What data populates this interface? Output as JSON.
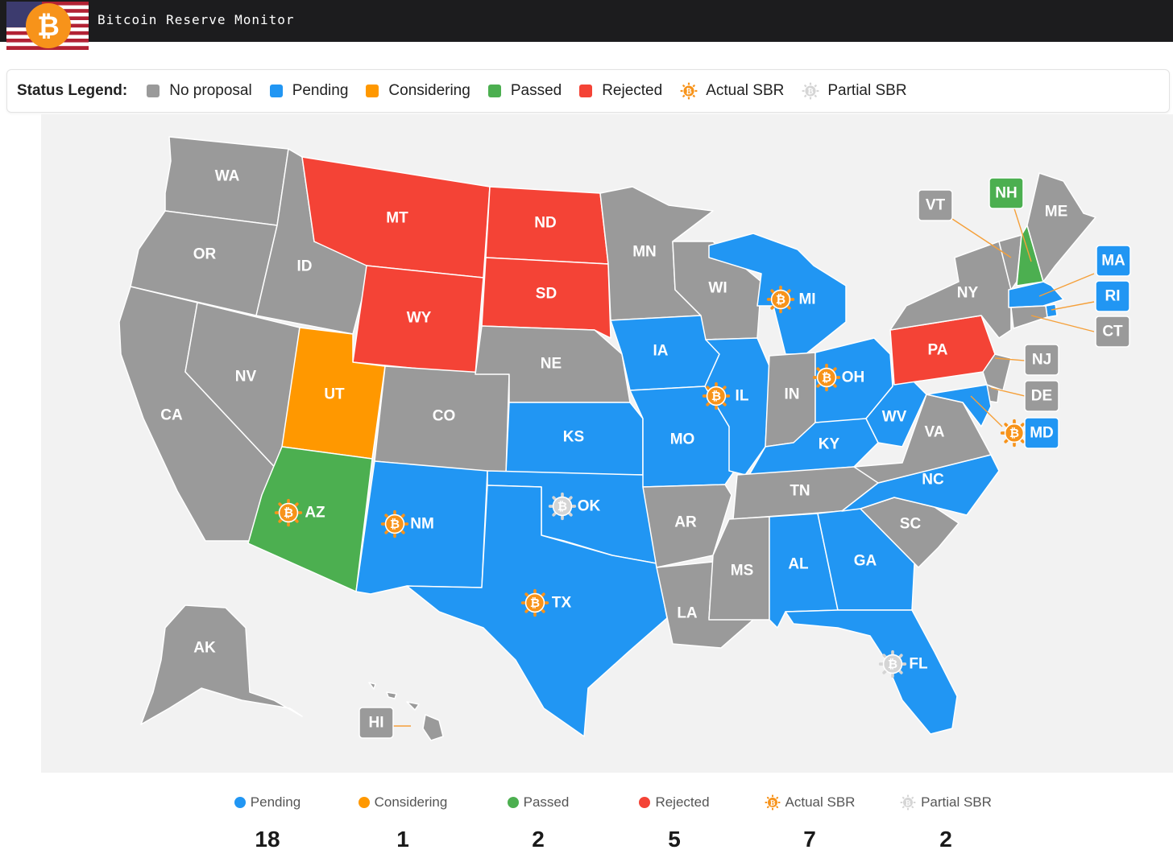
{
  "header": {
    "title": "Bitcoin Reserve Monitor"
  },
  "legend": {
    "title": "Status Legend:",
    "items": [
      {
        "label": "No proposal",
        "color": "#9a9a9a",
        "kind": "swatch"
      },
      {
        "label": "Pending",
        "color": "#2196f3",
        "kind": "swatch"
      },
      {
        "label": "Considering",
        "color": "#ff9800",
        "kind": "swatch"
      },
      {
        "label": "Passed",
        "color": "#4caf50",
        "kind": "swatch"
      },
      {
        "label": "Rejected",
        "color": "#f44336",
        "kind": "swatch"
      },
      {
        "label": "Actual SBR",
        "color": "#f7931a",
        "kind": "bitcoin-icon"
      },
      {
        "label": "Partial SBR",
        "color": "#d5d5d5",
        "kind": "bitcoin-icon"
      }
    ]
  },
  "colors": {
    "none": "#9a9a9a",
    "pending": "#2196f3",
    "considering": "#ff9800",
    "passed": "#4caf50",
    "rejected": "#f44336",
    "actual": "#f7931a",
    "partial": "#d5d5d5",
    "callout_line": "#f5a03a"
  },
  "states": [
    {
      "abbr": "WA",
      "status": "none"
    },
    {
      "abbr": "OR",
      "status": "none"
    },
    {
      "abbr": "CA",
      "status": "none"
    },
    {
      "abbr": "NV",
      "status": "none"
    },
    {
      "abbr": "ID",
      "status": "none"
    },
    {
      "abbr": "MT",
      "status": "rejected"
    },
    {
      "abbr": "WY",
      "status": "rejected"
    },
    {
      "abbr": "UT",
      "status": "considering"
    },
    {
      "abbr": "AZ",
      "status": "passed",
      "sbr": "actual"
    },
    {
      "abbr": "CO",
      "status": "none"
    },
    {
      "abbr": "NM",
      "status": "pending",
      "sbr": "actual"
    },
    {
      "abbr": "ND",
      "status": "rejected"
    },
    {
      "abbr": "SD",
      "status": "rejected"
    },
    {
      "abbr": "NE",
      "status": "none"
    },
    {
      "abbr": "KS",
      "status": "pending"
    },
    {
      "abbr": "OK",
      "status": "pending",
      "sbr": "partial"
    },
    {
      "abbr": "TX",
      "status": "pending",
      "sbr": "actual"
    },
    {
      "abbr": "MN",
      "status": "none"
    },
    {
      "abbr": "IA",
      "status": "pending"
    },
    {
      "abbr": "MO",
      "status": "pending"
    },
    {
      "abbr": "AR",
      "status": "none"
    },
    {
      "abbr": "LA",
      "status": "none"
    },
    {
      "abbr": "WI",
      "status": "none"
    },
    {
      "abbr": "IL",
      "status": "pending",
      "sbr": "actual"
    },
    {
      "abbr": "MI",
      "status": "pending",
      "sbr": "actual"
    },
    {
      "abbr": "IN",
      "status": "none"
    },
    {
      "abbr": "OH",
      "status": "pending",
      "sbr": "actual"
    },
    {
      "abbr": "KY",
      "status": "pending"
    },
    {
      "abbr": "TN",
      "status": "none"
    },
    {
      "abbr": "MS",
      "status": "none"
    },
    {
      "abbr": "AL",
      "status": "pending"
    },
    {
      "abbr": "GA",
      "status": "pending"
    },
    {
      "abbr": "FL",
      "status": "pending",
      "sbr": "partial"
    },
    {
      "abbr": "SC",
      "status": "none"
    },
    {
      "abbr": "NC",
      "status": "pending"
    },
    {
      "abbr": "VA",
      "status": "none"
    },
    {
      "abbr": "WV",
      "status": "pending"
    },
    {
      "abbr": "PA",
      "status": "rejected"
    },
    {
      "abbr": "NY",
      "status": "none"
    },
    {
      "abbr": "VT",
      "status": "none"
    },
    {
      "abbr": "NH",
      "status": "passed"
    },
    {
      "abbr": "ME",
      "status": "none"
    },
    {
      "abbr": "MA",
      "status": "pending"
    },
    {
      "abbr": "RI",
      "status": "pending"
    },
    {
      "abbr": "CT",
      "status": "none"
    },
    {
      "abbr": "NJ",
      "status": "none"
    },
    {
      "abbr": "DE",
      "status": "none"
    },
    {
      "abbr": "MD",
      "status": "pending",
      "sbr": "actual"
    },
    {
      "abbr": "AK",
      "status": "none"
    },
    {
      "abbr": "HI",
      "status": "none"
    }
  ],
  "stats": [
    {
      "label": "Pending",
      "value": "18",
      "color": "#2196f3",
      "kind": "dot"
    },
    {
      "label": "Considering",
      "value": "1",
      "color": "#ff9800",
      "kind": "dot"
    },
    {
      "label": "Passed",
      "value": "2",
      "color": "#4caf50",
      "kind": "dot"
    },
    {
      "label": "Rejected",
      "value": "5",
      "color": "#f44336",
      "kind": "dot"
    },
    {
      "label": "Actual SBR",
      "value": "7",
      "color": "#f7931a",
      "kind": "bitcoin-icon"
    },
    {
      "label": "Partial SBR",
      "value": "2",
      "color": "#d5d5d5",
      "kind": "bitcoin-icon"
    }
  ]
}
